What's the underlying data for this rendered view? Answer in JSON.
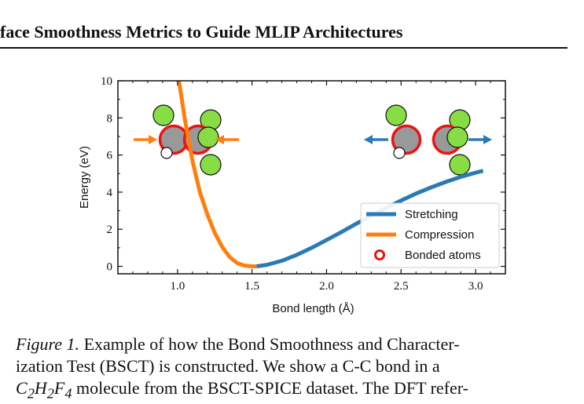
{
  "header": {
    "title": "face Smoothness Metrics to Guide MLIP Architectures"
  },
  "figure": {
    "chart_data": {
      "type": "line",
      "xlabel": "Bond length (Å)",
      "ylabel": "Energy (eV)",
      "xlim": [
        0.6,
        3.2
      ],
      "ylim": [
        -0.4,
        10.0
      ],
      "xticks": [
        1.0,
        1.5,
        2.0,
        2.5,
        3.0
      ],
      "xtick_labels": [
        "1.0",
        "1.5",
        "2.0",
        "2.5",
        "3.0"
      ],
      "yticks": [
        0,
        2,
        4,
        6,
        8,
        10
      ],
      "ytick_labels": [
        "0",
        "2",
        "4",
        "6",
        "8",
        "10"
      ],
      "grid": false,
      "legend_position": "lower-right",
      "series": [
        {
          "name": "Stretching",
          "color": "#2a7ab5",
          "x": [
            1.53,
            1.6,
            1.7,
            1.8,
            1.9,
            2.0,
            2.1,
            2.2,
            2.3,
            2.4,
            2.5,
            2.6,
            2.7,
            2.8,
            2.9,
            3.0,
            3.05
          ],
          "y": [
            0.0,
            0.08,
            0.3,
            0.62,
            1.0,
            1.42,
            1.85,
            2.3,
            2.72,
            3.15,
            3.55,
            3.92,
            4.25,
            4.55,
            4.82,
            5.05,
            5.15
          ]
        },
        {
          "name": "Compression",
          "color": "#ff7f0e",
          "x": [
            1.01,
            1.05,
            1.1,
            1.15,
            1.2,
            1.25,
            1.3,
            1.35,
            1.4,
            1.45,
            1.5,
            1.53
          ],
          "y": [
            10.0,
            7.9,
            5.7,
            4.0,
            2.8,
            1.8,
            1.05,
            0.5,
            0.18,
            0.04,
            0.0,
            0.0
          ]
        }
      ],
      "legend_marker": {
        "name": "Bonded atoms",
        "color": "#ee1111"
      }
    },
    "molecule_colors": {
      "carbon": "#999999",
      "fluorine": "#88dd44",
      "hydrogen": "#ffffff",
      "bond_ring": "#ee1111"
    },
    "icons": [
      "arrow-right-icon",
      "arrow-left-icon",
      "carbon-atom-icon",
      "fluorine-atom-icon",
      "hydrogen-atom-icon"
    ]
  },
  "caption": {
    "label": "Figure 1.",
    "line1_rest": " Example of how the Bond Smoothness and Character-",
    "line2": "ization Test (BSCT) is constructed.  We show a C-C bond in a",
    "line3_formula": "C",
    "line3_rest": " molecule from the BSCT-SPICE dataset. The DFT refer-"
  }
}
